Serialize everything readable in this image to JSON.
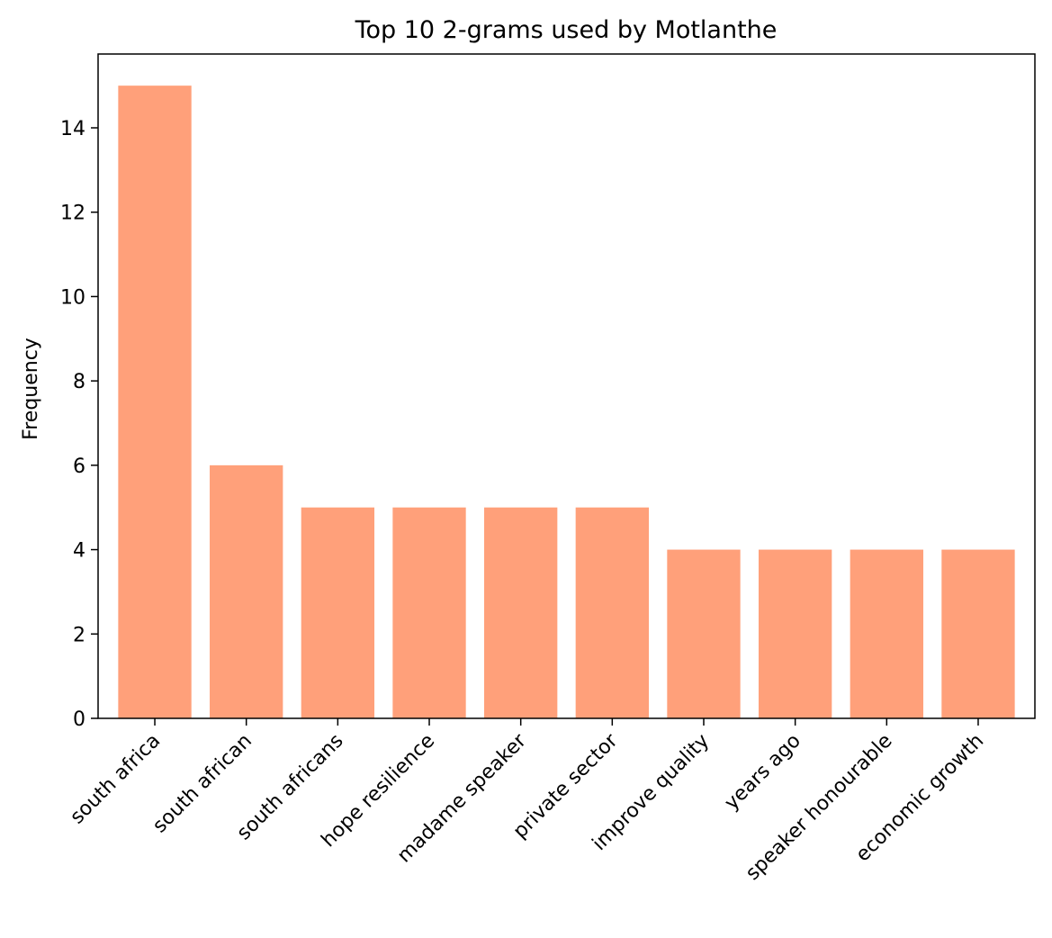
{
  "chart_data": {
    "type": "bar",
    "title": "Top 10 2-grams used by  Motlanthe",
    "xlabel": "",
    "ylabel": "Frequency",
    "categories": [
      "south africa",
      "south african",
      "south africans",
      "hope resilience",
      "madame speaker",
      "private sector",
      "improve quality",
      "years ago",
      "speaker honourable",
      "economic growth"
    ],
    "values": [
      15,
      6,
      5,
      5,
      5,
      5,
      4,
      4,
      4,
      4
    ],
    "ylim": [
      0,
      15.75
    ],
    "yticks": [
      0,
      2,
      4,
      6,
      8,
      10,
      12,
      14
    ],
    "bar_color": "#ffa07a",
    "grid": false,
    "legend": "none"
  }
}
